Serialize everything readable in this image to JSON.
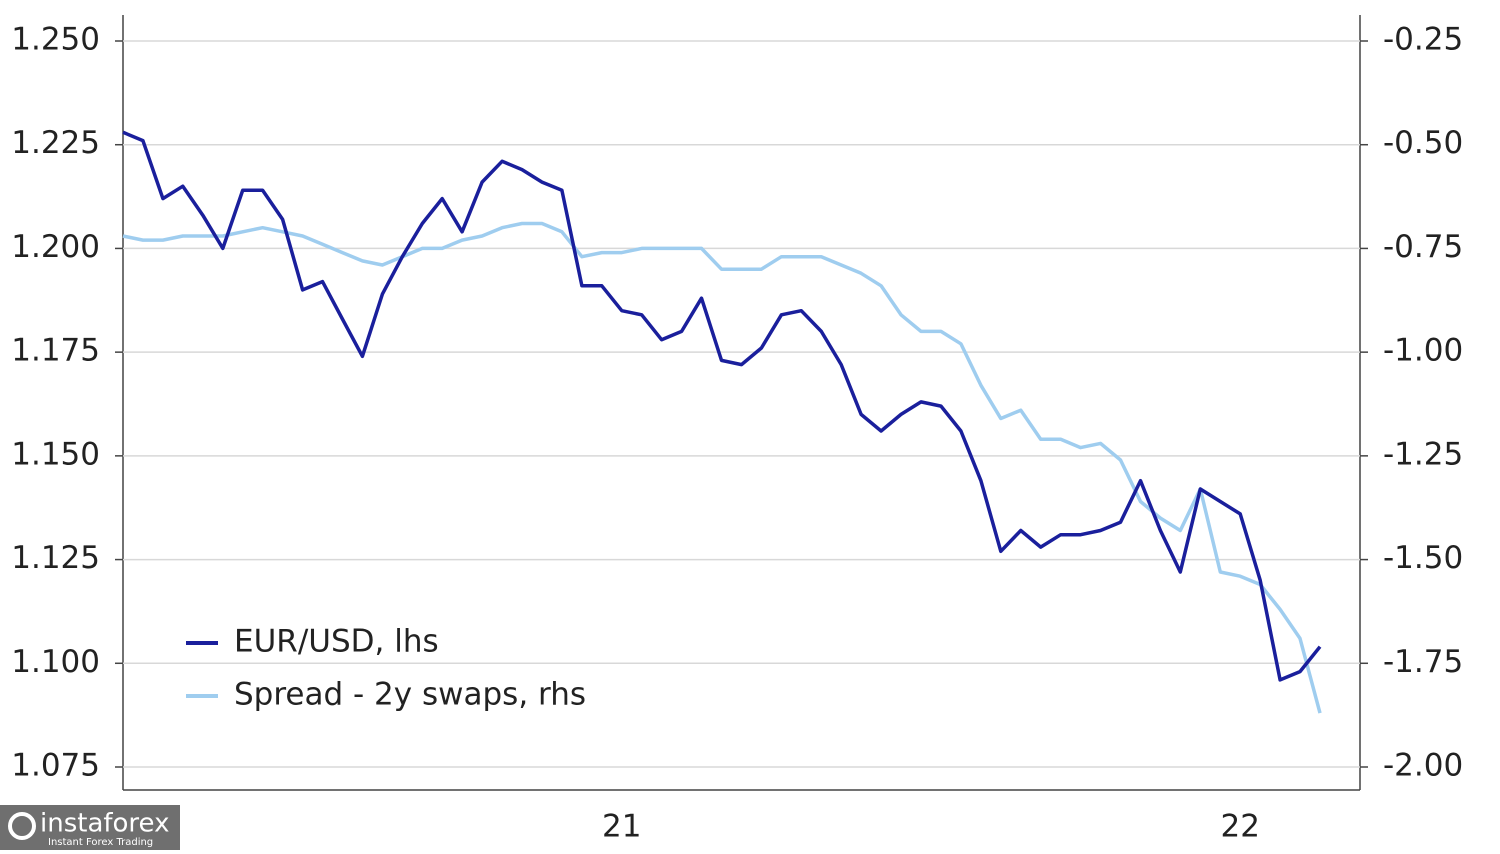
{
  "chart_data": {
    "type": "line",
    "categories": [
      null,
      null,
      null,
      null,
      null,
      null,
      null,
      null,
      null,
      null,
      null,
      null,
      null,
      null,
      null,
      null,
      null,
      null,
      null,
      null,
      null,
      null,
      null,
      null,
      null,
      "21",
      null,
      null,
      null,
      null,
      null,
      null,
      null,
      null,
      null,
      null,
      null,
      null,
      null,
      null,
      null,
      null,
      null,
      null,
      null,
      null,
      null,
      null,
      null,
      null,
      null,
      null,
      null,
      null,
      null,
      null,
      "22",
      null,
      null,
      null,
      null
    ],
    "series": [
      {
        "name": "EUR/USD, lhs",
        "color": "#1a1f9c",
        "values": [
          1.228,
          1.226,
          1.212,
          1.215,
          1.208,
          1.2,
          1.214,
          1.214,
          1.207,
          1.19,
          1.192,
          1.183,
          1.174,
          1.189,
          1.198,
          1.206,
          1.212,
          1.204,
          1.216,
          1.221,
          1.219,
          1.216,
          1.214,
          1.191,
          1.191,
          1.185,
          1.184,
          1.178,
          1.18,
          1.188,
          1.173,
          1.172,
          1.176,
          1.184,
          1.185,
          1.18,
          1.172,
          1.16,
          1.156,
          1.16,
          1.163,
          1.162,
          1.156,
          1.144,
          1.127,
          1.132,
          1.128,
          1.131,
          1.131,
          1.132,
          1.134,
          1.144,
          1.132,
          1.122,
          1.142,
          1.139,
          1.136,
          1.12,
          1.096,
          1.098,
          1.104
        ]
      },
      {
        "name": "Spread - 2y swaps, rhs",
        "color": "#9fcdef",
        "axis": "y2",
        "values": [
          -0.72,
          -0.73,
          -0.73,
          -0.72,
          -0.72,
          -0.72,
          -0.71,
          -0.7,
          -0.71,
          -0.72,
          -0.74,
          -0.76,
          -0.78,
          -0.79,
          -0.77,
          -0.75,
          -0.75,
          -0.73,
          -0.72,
          -0.7,
          -0.69,
          -0.69,
          -0.71,
          -0.77,
          -0.76,
          -0.76,
          -0.75,
          -0.75,
          -0.75,
          -0.75,
          -0.8,
          -0.8,
          -0.8,
          -0.77,
          -0.77,
          -0.77,
          -0.79,
          -0.81,
          -0.84,
          -0.91,
          -0.95,
          -0.95,
          -0.98,
          -1.08,
          -1.16,
          -1.14,
          -1.21,
          -1.21,
          -1.23,
          -1.22,
          -1.26,
          -1.36,
          -1.4,
          -1.43,
          -1.33,
          -1.53,
          -1.54,
          -1.56,
          -1.62,
          -1.69,
          -1.87
        ]
      }
    ],
    "ylim": [
      1.075,
      1.25
    ],
    "yticks": [
      {
        "value": 1.075,
        "label": "1.075"
      },
      {
        "value": 1.1,
        "label": "1.100"
      },
      {
        "value": 1.125,
        "label": "1.125"
      },
      {
        "value": 1.15,
        "label": "1.150"
      },
      {
        "value": 1.175,
        "label": "1.175"
      },
      {
        "value": 1.2,
        "label": "1.200"
      },
      {
        "value": 1.225,
        "label": "1.225"
      },
      {
        "value": 1.25,
        "label": "1.250"
      }
    ],
    "y2lim": [
      -2.0,
      -0.25
    ],
    "y2ticks": [
      {
        "value": -2.0,
        "label": "-2.00"
      },
      -1.75,
      {
        "value": -1.5,
        "label": "-1.50"
      },
      -1.25,
      {
        "value": -1.0,
        "label": "-1.00"
      },
      -0.75,
      {
        "value": -0.5,
        "label": "-0.50"
      },
      -0.25
    ],
    "grid": true,
    "legend": "lower-left"
  },
  "watermark": {
    "brand": "instaforex",
    "tagline": "Instant Forex Trading"
  }
}
